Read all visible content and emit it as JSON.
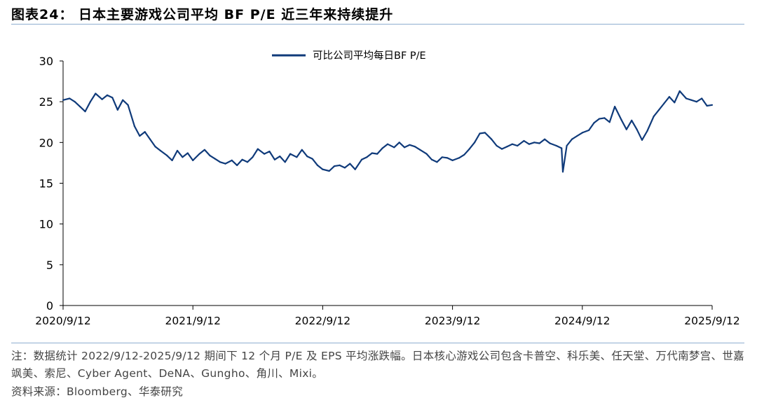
{
  "figure": {
    "title": "图表24： 日本主要游戏公司平均 BF P/E 近三年来持续提升",
    "note": "注：数据统计 2022/9/12-2025/9/12 期间下 12 个月 P/E 及 EPS 平均涨跌幅。日本核心游戏公司包含卡普空、科乐美、任天堂、万代南梦宫、世嘉飒美、索尼、Cyber Agent、DeNA、Gungho、角川、Mixi。",
    "source": "资料来源：Bloomberg、华泰研究",
    "line_color": "#0f3a7a"
  },
  "chart_data": {
    "type": "line",
    "title": "",
    "xlabel": "",
    "ylabel": "",
    "ylim": [
      0,
      30
    ],
    "yticks": [
      0,
      5,
      10,
      15,
      20,
      25,
      30
    ],
    "xlim": [
      2020.7,
      2025.7
    ],
    "xticks": [
      {
        "label": "2020/9/12",
        "value": 2020.7
      },
      {
        "label": "2021/9/12",
        "value": 2021.7
      },
      {
        "label": "2022/9/12",
        "value": 2022.7
      },
      {
        "label": "2023/9/12",
        "value": 2023.7
      },
      {
        "label": "2024/9/12",
        "value": 2024.7
      },
      {
        "label": "2025/9/12",
        "value": 2025.7
      }
    ],
    "legend": "top-center",
    "series": [
      {
        "name": "可比公司平均每日BF P/E",
        "x": [
          2020.7,
          2020.75,
          2020.79,
          2020.83,
          2020.87,
          2020.91,
          2020.95,
          2021.0,
          2021.04,
          2021.08,
          2021.12,
          2021.16,
          2021.2,
          2021.25,
          2021.29,
          2021.33,
          2021.37,
          2021.41,
          2021.45,
          2021.5,
          2021.54,
          2021.58,
          2021.62,
          2021.66,
          2021.7,
          2021.75,
          2021.79,
          2021.83,
          2021.87,
          2021.91,
          2021.95,
          2022.0,
          2022.04,
          2022.08,
          2022.12,
          2022.16,
          2022.2,
          2022.25,
          2022.29,
          2022.33,
          2022.37,
          2022.41,
          2022.45,
          2022.5,
          2022.54,
          2022.58,
          2022.62,
          2022.66,
          2022.7,
          2022.75,
          2022.79,
          2022.83,
          2022.87,
          2022.91,
          2022.95,
          2023.0,
          2023.04,
          2023.08,
          2023.12,
          2023.16,
          2023.2,
          2023.25,
          2023.29,
          2023.33,
          2023.37,
          2023.41,
          2023.45,
          2023.5,
          2023.54,
          2023.58,
          2023.62,
          2023.66,
          2023.7,
          2023.75,
          2023.79,
          2023.83,
          2023.87,
          2023.91,
          2023.95,
          2024.0,
          2024.04,
          2024.08,
          2024.12,
          2024.16,
          2024.2,
          2024.25,
          2024.29,
          2024.33,
          2024.37,
          2024.41,
          2024.45,
          2024.5,
          2024.54,
          2024.55,
          2024.58,
          2024.62,
          2024.66,
          2024.7,
          2024.75,
          2024.79,
          2024.83,
          2024.87,
          2024.91,
          2024.95,
          2025.0,
          2025.04,
          2025.08,
          2025.12,
          2025.16,
          2025.2,
          2025.25,
          2025.29,
          2025.33,
          2025.37,
          2025.41,
          2025.45,
          2025.5,
          2025.54,
          2025.58,
          2025.62,
          2025.66,
          2025.7
        ],
        "values": [
          25.2,
          25.4,
          25.0,
          24.4,
          23.8,
          25.0,
          26.0,
          25.3,
          25.8,
          25.5,
          24.0,
          25.2,
          24.6,
          22.0,
          20.8,
          21.3,
          20.4,
          19.5,
          19.0,
          18.4,
          17.8,
          19.0,
          18.2,
          18.7,
          17.8,
          18.6,
          19.1,
          18.4,
          18.0,
          17.6,
          17.4,
          17.8,
          17.2,
          17.9,
          17.6,
          18.2,
          19.2,
          18.6,
          18.9,
          17.9,
          18.3,
          17.6,
          18.6,
          18.2,
          19.1,
          18.3,
          18.0,
          17.2,
          16.7,
          16.5,
          17.1,
          17.2,
          16.9,
          17.4,
          16.7,
          17.9,
          18.2,
          18.7,
          18.6,
          19.3,
          19.8,
          19.4,
          20.0,
          19.4,
          19.7,
          19.5,
          19.1,
          18.6,
          17.9,
          17.6,
          18.2,
          18.1,
          17.8,
          18.1,
          18.5,
          19.2,
          20.0,
          21.1,
          21.2,
          20.4,
          19.6,
          19.2,
          19.5,
          19.8,
          19.6,
          20.2,
          19.8,
          20.0,
          19.9,
          20.4,
          19.9,
          19.6,
          19.3,
          16.4,
          19.6,
          20.4,
          20.8,
          21.2,
          21.5,
          22.4,
          22.9,
          23.0,
          22.5,
          24.4,
          22.8,
          21.6,
          22.7,
          21.6,
          20.3,
          21.4,
          23.2,
          24.0,
          24.8,
          25.6,
          24.9,
          26.3,
          25.4,
          25.2,
          25.0,
          25.4,
          24.5,
          24.6
        ]
      }
    ]
  }
}
